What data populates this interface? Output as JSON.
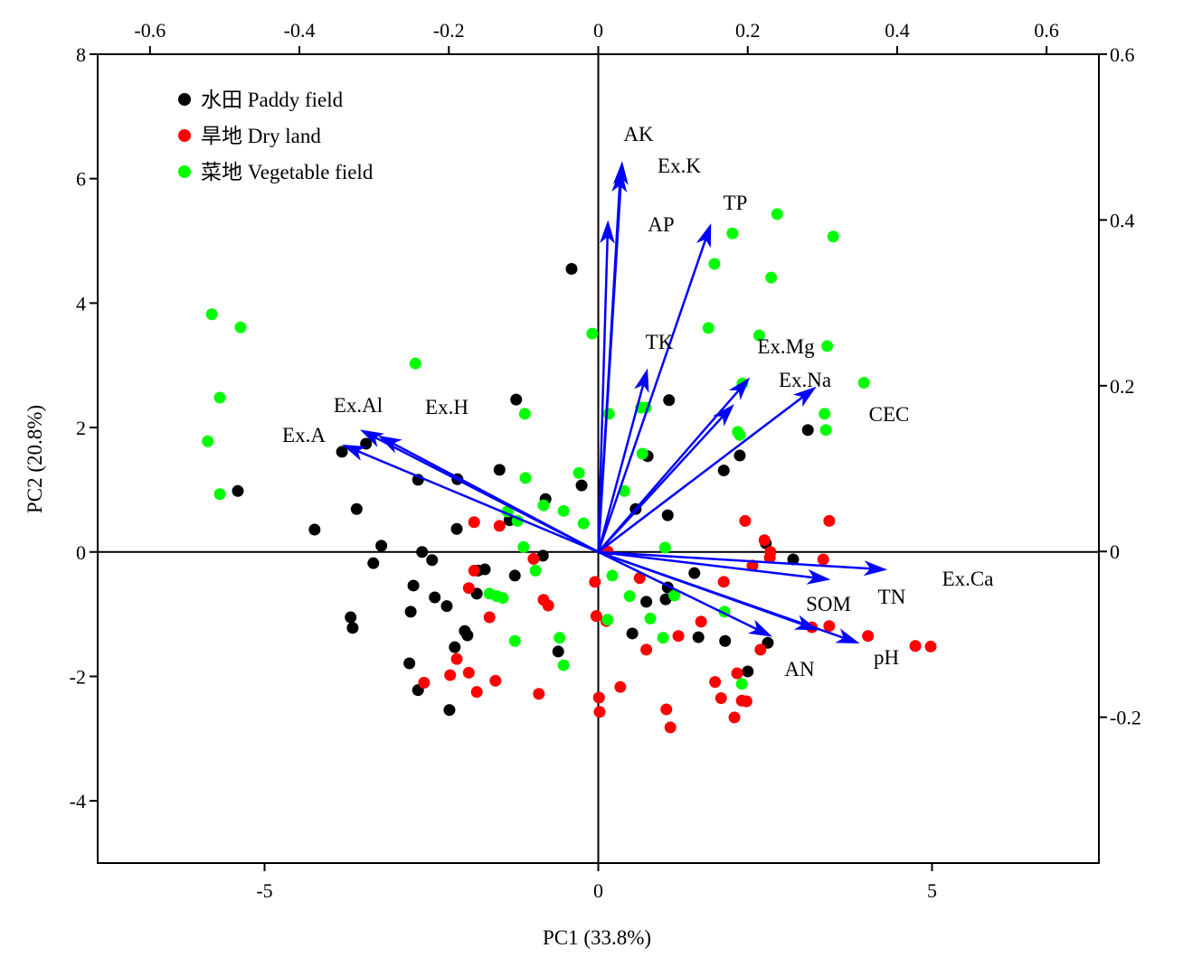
{
  "chart_data": {
    "type": "scatter",
    "xlabel": "PC1 (33.8%)",
    "ylabel": "PC2 (20.8%)",
    "xlim": [
      -7.5,
      7.5
    ],
    "ylim": [
      -5,
      8
    ],
    "x_ticks": [
      -5,
      0,
      5
    ],
    "y_ticks": [
      -4,
      -2,
      0,
      2,
      4,
      6,
      8
    ],
    "top_axis": {
      "lim": [
        -0.67,
        0.67
      ],
      "ticks": [
        -0.6,
        -0.4,
        -0.2,
        0,
        0.2,
        0.4,
        0.6
      ]
    },
    "right_axis": {
      "lim": [
        -0.376,
        0.6
      ],
      "ticks": [
        -0.2,
        0,
        0.2,
        0.4,
        0.6
      ]
    },
    "reference_lines": {
      "x": 0,
      "y": 0
    },
    "grid": false,
    "legend": {
      "position": "top-left"
    },
    "series": [
      {
        "name": "水田 Paddy field",
        "color": "#000000",
        "points": [
          [
            -0.4,
            4.55
          ],
          [
            -1.23,
            2.45
          ],
          [
            1.06,
            2.44
          ],
          [
            3.14,
            1.96
          ],
          [
            -3.84,
            1.61
          ],
          [
            -3.48,
            1.74
          ],
          [
            -5.4,
            0.98
          ],
          [
            -2.7,
            1.16
          ],
          [
            -2.11,
            1.17
          ],
          [
            -1.48,
            1.32
          ],
          [
            -0.79,
            0.85
          ],
          [
            -0.25,
            1.07
          ],
          [
            0.74,
            1.54
          ],
          [
            1.88,
            1.31
          ],
          [
            2.12,
            1.55
          ],
          [
            -3.62,
            0.69
          ],
          [
            -4.25,
            0.36
          ],
          [
            -2.12,
            0.37
          ],
          [
            -1.33,
            0.51
          ],
          [
            -0.83,
            -0.06
          ],
          [
            0.56,
            0.69
          ],
          [
            1.04,
            0.59
          ],
          [
            -3.25,
            0.1
          ],
          [
            -3.37,
            -0.18
          ],
          [
            -2.64,
            0
          ],
          [
            -2.49,
            -0.13
          ],
          [
            2.51,
            0.14
          ],
          [
            2.92,
            -0.12
          ],
          [
            -1.8,
            -0.3
          ],
          [
            -1.7,
            -0.28
          ],
          [
            -1.25,
            -0.38
          ],
          [
            1.44,
            -0.34
          ],
          [
            -2.77,
            -0.54
          ],
          [
            -2.45,
            -0.73
          ],
          [
            -2.27,
            -0.87
          ],
          [
            -1.82,
            -0.67
          ],
          [
            1.04,
            -0.57
          ],
          [
            0.72,
            -0.8
          ],
          [
            1.01,
            -0.76
          ],
          [
            -3.71,
            -1.05
          ],
          [
            -3.68,
            -1.22
          ],
          [
            -2.81,
            -0.96
          ],
          [
            -2.0,
            -1.27
          ],
          [
            -1.96,
            -1.34
          ],
          [
            -2.15,
            -1.53
          ],
          [
            0.51,
            -1.31
          ],
          [
            1.5,
            -1.37
          ],
          [
            1.9,
            -1.43
          ],
          [
            2.54,
            -1.46
          ],
          [
            -0.6,
            -1.6
          ],
          [
            -2.83,
            -1.79
          ],
          [
            -2.7,
            -2.22
          ],
          [
            -2.23,
            -2.54
          ],
          [
            2.24,
            -1.92
          ]
        ]
      },
      {
        "name": "旱地 Dry land",
        "color": "#ff0000",
        "points": [
          [
            -1.86,
            0.48
          ],
          [
            -1.48,
            0.42
          ],
          [
            2.2,
            0.5
          ],
          [
            3.46,
            0.5
          ],
          [
            2.49,
            0.19
          ],
          [
            2.58,
            0
          ],
          [
            3.37,
            -0.12
          ],
          [
            2.57,
            -0.09
          ],
          [
            2.31,
            -0.22
          ],
          [
            -0.97,
            -0.11
          ],
          [
            -1.86,
            -0.3
          ],
          [
            0.14,
            0.01
          ],
          [
            -0.05,
            -0.48
          ],
          [
            0.62,
            -0.42
          ],
          [
            1.88,
            -0.48
          ],
          [
            -1.94,
            -0.58
          ],
          [
            -0.82,
            -0.77
          ],
          [
            -0.75,
            -0.86
          ],
          [
            -1.63,
            -1.05
          ],
          [
            -0.03,
            -1.03
          ],
          [
            0.12,
            -1.11
          ],
          [
            1.54,
            -1.12
          ],
          [
            3.2,
            -1.21
          ],
          [
            3.46,
            -1.19
          ],
          [
            4.04,
            -1.35
          ],
          [
            4.75,
            -1.51
          ],
          [
            4.98,
            -1.52
          ],
          [
            1.2,
            -1.35
          ],
          [
            0.72,
            -1.57
          ],
          [
            2.43,
            -1.57
          ],
          [
            -2.12,
            -1.72
          ],
          [
            -2.22,
            -1.98
          ],
          [
            -1.94,
            -1.94
          ],
          [
            -2.61,
            -2.1
          ],
          [
            -1.54,
            -2.07
          ],
          [
            -1.82,
            -2.25
          ],
          [
            -0.89,
            -2.28
          ],
          [
            0.33,
            -2.17
          ],
          [
            0.01,
            -2.34
          ],
          [
            0.02,
            -2.57
          ],
          [
            1.02,
            -2.53
          ],
          [
            1.08,
            -2.82
          ],
          [
            1.75,
            -2.09
          ],
          [
            1.84,
            -2.35
          ],
          [
            2.08,
            -1.95
          ],
          [
            2.15,
            -2.39
          ],
          [
            2.04,
            -2.66
          ],
          [
            2.22,
            -2.4
          ]
        ]
      },
      {
        "name": "菜地 Vegetable field",
        "color": "#00ff00",
        "points": [
          [
            -5.79,
            3.82
          ],
          [
            -5.36,
            3.61
          ],
          [
            -5.67,
            2.48
          ],
          [
            -5.85,
            1.78
          ],
          [
            -5.67,
            0.93
          ],
          [
            -2.74,
            3.03
          ],
          [
            -0.09,
            3.51
          ],
          [
            2.01,
            5.12
          ],
          [
            2.68,
            5.43
          ],
          [
            3.52,
            5.07
          ],
          [
            1.74,
            4.63
          ],
          [
            2.59,
            4.41
          ],
          [
            1.65,
            3.6
          ],
          [
            2.41,
            3.48
          ],
          [
            3.43,
            3.31
          ],
          [
            3.98,
            2.72
          ],
          [
            2.16,
            2.71
          ],
          [
            0.64,
            2.32
          ],
          [
            0.71,
            2.32
          ],
          [
            0.16,
            2.22
          ],
          [
            -1.1,
            2.22
          ],
          [
            3.39,
            2.22
          ],
          [
            3.41,
            1.96
          ],
          [
            2.09,
            1.93
          ],
          [
            2.12,
            1.88
          ],
          [
            0.66,
            1.58
          ],
          [
            -1.09,
            1.19
          ],
          [
            -0.29,
            1.27
          ],
          [
            0.39,
            0.98
          ],
          [
            -0.82,
            0.75
          ],
          [
            -0.52,
            0.66
          ],
          [
            -1.36,
            0.65
          ],
          [
            -1.21,
            0.5
          ],
          [
            -0.22,
            0.46
          ],
          [
            -1.12,
            0.08
          ],
          [
            1.0,
            0.07
          ],
          [
            -0.94,
            -0.3
          ],
          [
            0.21,
            -0.38
          ],
          [
            -1.63,
            -0.67
          ],
          [
            -1.52,
            -0.71
          ],
          [
            -1.43,
            -0.74
          ],
          [
            0.47,
            -0.71
          ],
          [
            1.14,
            -0.7
          ],
          [
            1.89,
            -0.96
          ],
          [
            0.78,
            -1.07
          ],
          [
            0.14,
            -1.09
          ],
          [
            -1.25,
            -1.43
          ],
          [
            -0.58,
            -1.38
          ],
          [
            0.97,
            -1.38
          ],
          [
            -0.52,
            -1.82
          ],
          [
            2.15,
            -2.12
          ]
        ]
      }
    ],
    "loadings": {
      "color": "#0000ff",
      "vectors": [
        {
          "label": "AK",
          "x": 0.032,
          "y": 0.471
        },
        {
          "label": "Ex.K",
          "x": 0.03,
          "y": 0.462
        },
        {
          "label": "AP",
          "x": 0.013,
          "y": 0.4
        },
        {
          "label": "TP",
          "x": 0.151,
          "y": 0.396
        },
        {
          "label": "TK",
          "x": 0.066,
          "y": 0.221
        },
        {
          "label": "Ex.Mg",
          "x": 0.203,
          "y": 0.21
        },
        {
          "label": "Ex.Na",
          "x": 0.182,
          "y": 0.178
        },
        {
          "label": "CEC",
          "x": 0.292,
          "y": 0.199
        },
        {
          "label": "Ex.Ca",
          "x": 0.387,
          "y": -0.022
        },
        {
          "label": "TN",
          "x": 0.311,
          "y": -0.034
        },
        {
          "label": "SOM",
          "x": 0.295,
          "y": -0.095
        },
        {
          "label": "pH",
          "x": 0.35,
          "y": -0.111
        },
        {
          "label": "AN",
          "x": 0.233,
          "y": -0.103
        },
        {
          "label": "Ex.A",
          "x": -0.343,
          "y": 0.129
        },
        {
          "label": "Ex.Al",
          "x": -0.319,
          "y": 0.147
        },
        {
          "label": "Ex.H",
          "x": -0.295,
          "y": 0.14
        }
      ]
    }
  }
}
